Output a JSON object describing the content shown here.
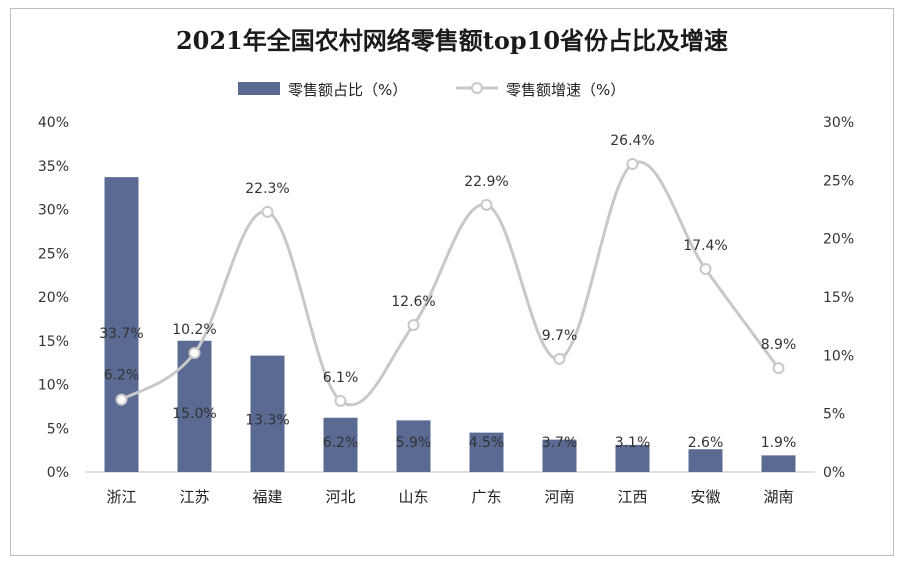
{
  "chart_data": {
    "type": "bar",
    "title": "2021年全国农村网络零售额top10省份占比及增速",
    "categories": [
      "浙江",
      "江苏",
      "福建",
      "河北",
      "山东",
      "广东",
      "河南",
      "江西",
      "安徽",
      "湖南"
    ],
    "series": [
      {
        "name": "零售额占比（%）",
        "type": "bar",
        "axis": "left",
        "color": "#5b6a93",
        "values": [
          33.7,
          15.0,
          13.3,
          6.2,
          5.9,
          4.5,
          3.7,
          3.1,
          2.6,
          1.9
        ],
        "labels": [
          "33.7%",
          "15.0%",
          "13.3%",
          "6.2%",
          "5.9%",
          "4.5%",
          "3.7%",
          "3.1%",
          "2.6%",
          "1.9%"
        ]
      },
      {
        "name": "零售额增速（%）",
        "type": "line",
        "axis": "right",
        "color": "#c8c8c8",
        "values": [
          6.2,
          10.2,
          22.3,
          6.1,
          12.6,
          22.9,
          9.7,
          26.4,
          17.4,
          8.9
        ],
        "labels": [
          "6.2%",
          "10.2%",
          "22.3%",
          "6.1%",
          "12.6%",
          "22.9%",
          "9.7%",
          "26.4%",
          "17.4%",
          "8.9%"
        ]
      }
    ],
    "y_left": {
      "min": 0,
      "max": 40,
      "step": 5,
      "ticks": [
        "0%",
        "5%",
        "10%",
        "15%",
        "20%",
        "25%",
        "30%",
        "35%",
        "40%"
      ]
    },
    "y_right": {
      "min": 0,
      "max": 30,
      "step": 5,
      "ticks": [
        "0%",
        "5%",
        "10%",
        "15%",
        "20%",
        "25%",
        "30%"
      ]
    },
    "legend_position": "top-center",
    "grid": false
  }
}
